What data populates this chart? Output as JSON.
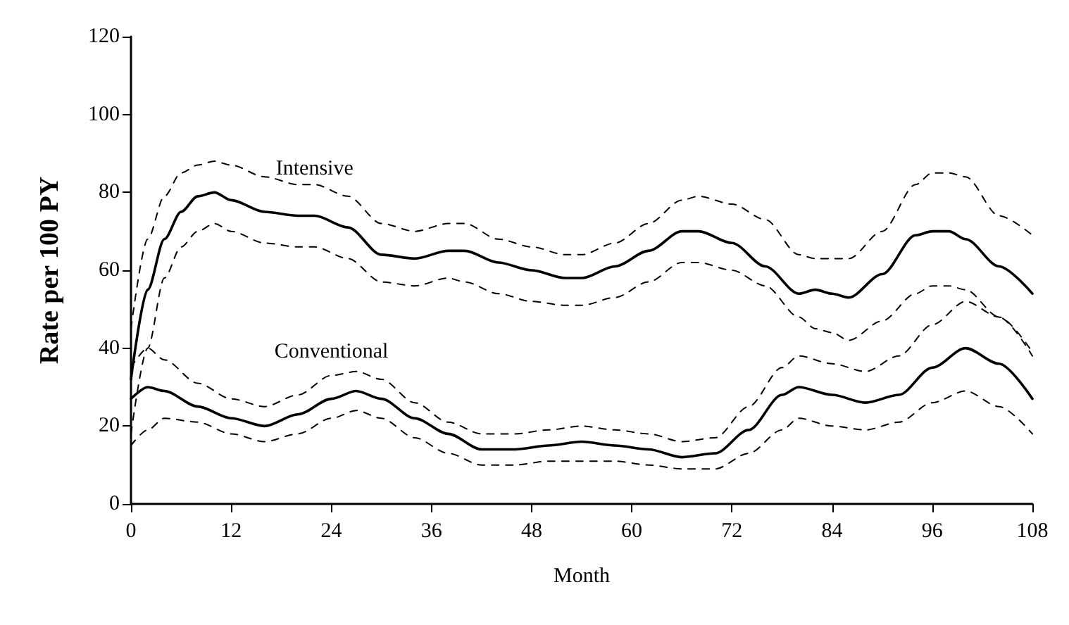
{
  "chart_data": {
    "type": "line",
    "xlabel": "Month",
    "ylabel": "Rate per 100 PY",
    "xlim": [
      0,
      108
    ],
    "xticks": [
      0,
      12,
      24,
      36,
      48,
      60,
      72,
      84,
      96,
      108
    ],
    "ylim": [
      0,
      120
    ],
    "yticks": [
      0,
      20,
      40,
      60,
      80,
      100,
      120
    ],
    "grid": false,
    "legend": false,
    "marker": "none",
    "series": [
      {
        "name": "Intensive",
        "color": "#000000",
        "line_style": "solid",
        "x": [
          0,
          2,
          4,
          6,
          8,
          10,
          12,
          16,
          20,
          22,
          26,
          30,
          34,
          38,
          40,
          44,
          48,
          52,
          54,
          58,
          62,
          66,
          68,
          72,
          76,
          80,
          82,
          84,
          86,
          90,
          94,
          96,
          98,
          100,
          104,
          108
        ],
        "values": [
          32,
          55,
          68,
          75,
          79,
          80,
          78,
          75,
          74,
          74,
          71,
          64,
          63,
          65,
          65,
          62,
          60,
          58,
          58,
          61,
          65,
          70,
          70,
          67,
          61,
          54,
          55,
          54,
          53,
          59,
          69,
          70,
          70,
          68,
          61,
          54
        ]
      },
      {
        "color": "#000000",
        "line_style": "dashed",
        "x": [
          0,
          2,
          4,
          6,
          8,
          10,
          12,
          16,
          20,
          22,
          26,
          30,
          34,
          38,
          40,
          44,
          48,
          52,
          54,
          58,
          62,
          66,
          68,
          72,
          76,
          80,
          82,
          84,
          86,
          90,
          94,
          96,
          98,
          100,
          104,
          108
        ],
        "values": [
          45,
          68,
          79,
          85,
          87,
          88,
          87,
          84,
          82,
          82,
          79,
          72,
          70,
          72,
          72,
          68,
          66,
          64,
          64,
          67,
          72,
          78,
          79,
          77,
          73,
          64,
          63,
          63,
          63,
          70,
          82,
          85,
          85,
          84,
          74,
          69
        ]
      },
      {
        "color": "#000000",
        "line_style": "dashed",
        "x": [
          0,
          2,
          4,
          6,
          8,
          10,
          12,
          16,
          20,
          22,
          26,
          30,
          34,
          38,
          40,
          44,
          48,
          52,
          54,
          58,
          62,
          66,
          68,
          72,
          76,
          80,
          82,
          84,
          86,
          90,
          94,
          96,
          98,
          100,
          104,
          108
        ],
        "values": [
          18,
          40,
          58,
          66,
          70,
          72,
          70,
          67,
          66,
          66,
          63,
          57,
          56,
          58,
          57,
          54,
          52,
          51,
          51,
          53,
          57,
          62,
          62,
          60,
          56,
          48,
          45,
          44,
          42,
          47,
          54,
          56,
          56,
          55,
          48,
          38
        ]
      },
      {
        "name": "Conventional",
        "color": "#000000",
        "line_style": "solid",
        "x": [
          0,
          2,
          4,
          8,
          12,
          16,
          20,
          24,
          27,
          30,
          34,
          38,
          42,
          46,
          50,
          54,
          58,
          62,
          66,
          70,
          74,
          78,
          80,
          84,
          88,
          92,
          96,
          100,
          104,
          108
        ],
        "values": [
          27,
          30,
          29,
          25,
          22,
          20,
          23,
          27,
          29,
          27,
          22,
          18,
          14,
          14,
          15,
          16,
          15,
          14,
          12,
          13,
          19,
          28,
          30,
          28,
          26,
          28,
          35,
          40,
          36,
          27
        ]
      },
      {
        "color": "#000000",
        "line_style": "dashed",
        "x": [
          0,
          2,
          4,
          8,
          12,
          16,
          20,
          24,
          27,
          30,
          34,
          38,
          42,
          46,
          50,
          54,
          58,
          62,
          66,
          70,
          74,
          78,
          80,
          84,
          88,
          92,
          96,
          100,
          104,
          108
        ],
        "values": [
          35,
          40,
          37,
          31,
          27,
          25,
          28,
          33,
          34,
          32,
          26,
          21,
          18,
          18,
          19,
          20,
          19,
          18,
          16,
          17,
          25,
          35,
          38,
          36,
          34,
          38,
          46,
          52,
          48,
          39
        ]
      },
      {
        "color": "#000000",
        "line_style": "dashed",
        "x": [
          0,
          2,
          4,
          8,
          12,
          16,
          20,
          24,
          27,
          30,
          34,
          38,
          42,
          46,
          50,
          54,
          58,
          62,
          66,
          70,
          74,
          78,
          80,
          84,
          88,
          92,
          96,
          100,
          104,
          108
        ],
        "values": [
          15,
          19,
          22,
          21,
          18,
          16,
          18,
          22,
          24,
          22,
          17,
          13,
          10,
          10,
          11,
          11,
          11,
          10,
          9,
          9,
          13,
          19,
          22,
          20,
          19,
          21,
          26,
          29,
          25,
          18
        ]
      }
    ]
  }
}
